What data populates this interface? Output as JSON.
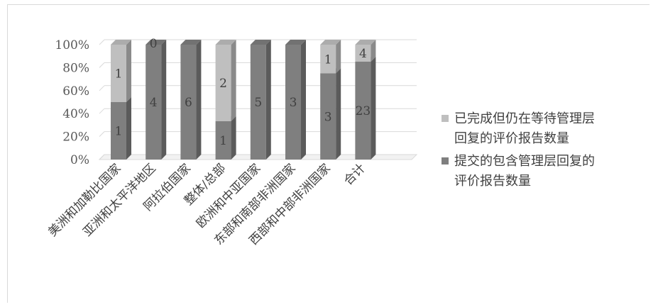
{
  "chart_data": {
    "type": "bar",
    "stacked": true,
    "percent_stacked": true,
    "style": "3d-column",
    "categories": [
      "美洲和加勒比国家",
      "亚洲和太平洋地区",
      "阿拉伯国家",
      "整体/总部",
      "欧洲和中亚国家",
      "东部和南部非洲国家",
      "西部和中部非洲国家",
      "合计"
    ],
    "series": [
      {
        "name": "提交的包含管理层回复的评价报告数量",
        "values": [
          1,
          4,
          6,
          1,
          5,
          3,
          3,
          23
        ],
        "color": "#7f7f7f"
      },
      {
        "name": "已完成但仍在等待管理层回复的评价报告数量",
        "values": [
          1,
          0,
          0,
          2,
          0,
          0,
          1,
          4
        ],
        "color": "#bfbfbf"
      }
    ],
    "data_labels": [
      [
        "1",
        "4",
        "6",
        "1",
        "5",
        "3",
        "3",
        "23"
      ],
      [
        "1",
        "0",
        "",
        "2",
        "",
        "",
        "1",
        "4"
      ]
    ],
    "y_ticks": [
      "0%",
      "20%",
      "40%",
      "60%",
      "80%",
      "100%"
    ],
    "ylim": [
      0,
      100
    ],
    "grid": true,
    "legend_position": "right",
    "legend": {
      "items": [
        {
          "lines": [
            "已完成但仍在等待管理层",
            "回复的评价报告数量"
          ],
          "color": "#bfbfbf"
        },
        {
          "lines": [
            "提交的包含管理层回复的",
            "评价报告数量"
          ],
          "color": "#7f7f7f"
        }
      ]
    }
  }
}
